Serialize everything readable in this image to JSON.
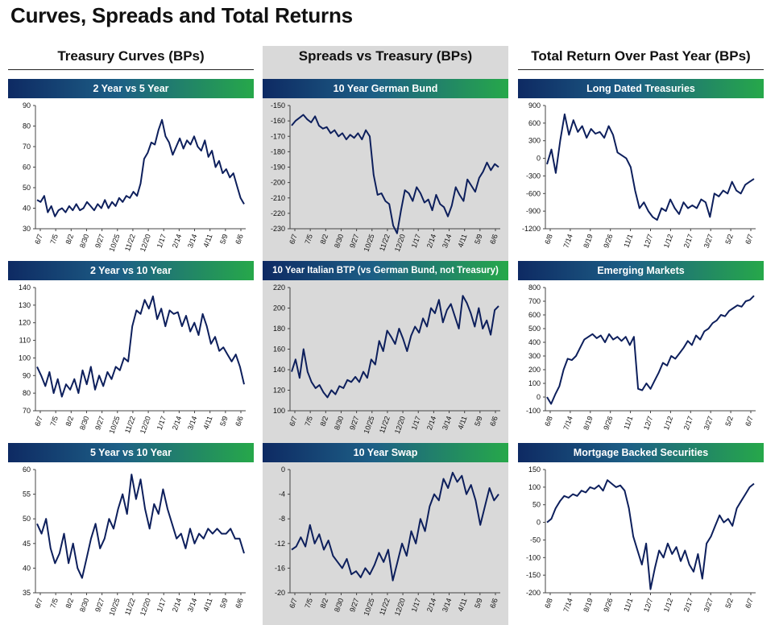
{
  "page_title": "Curves, Spreads and Total Returns",
  "columns": [
    {
      "heading": "Treasury Curves (BPs)"
    },
    {
      "heading": "Spreads vs Treasury (BPs)"
    },
    {
      "heading": "Total Return Over Past Year (BPs)"
    }
  ],
  "colors": {
    "line": "#0d1f5c",
    "bar_start": "#0e2a63",
    "bar_end": "#26a84a",
    "spreads_bg": "#d9d9d9"
  },
  "chart_data": [
    {
      "title": "2 Year vs 5 Year",
      "type": "line",
      "ylim": [
        30,
        90
      ],
      "yticks": [
        30,
        40,
        50,
        60,
        70,
        80,
        90
      ],
      "xticks": [
        "6/7",
        "7/5",
        "8/2",
        "8/30",
        "9/27",
        "10/25",
        "11/22",
        "12/20",
        "1/17",
        "2/14",
        "3/14",
        "4/11",
        "5/9",
        "6/6"
      ],
      "series": [
        {
          "values": [
            44,
            43,
            46,
            38,
            41,
            36,
            39,
            40,
            38,
            41,
            39,
            42,
            39,
            40,
            43,
            41,
            39,
            42,
            40,
            44,
            40,
            43,
            41,
            45,
            43,
            46,
            45,
            48,
            46,
            52,
            64,
            67,
            72,
            71,
            78,
            83,
            75,
            72,
            66,
            70,
            74,
            69,
            73,
            71,
            75,
            70,
            68,
            73,
            65,
            68,
            60,
            63,
            57,
            59,
            55,
            57,
            51,
            45,
            42
          ]
        }
      ]
    },
    {
      "title": "10 Year German Bund",
      "type": "line",
      "ylim": [
        -230,
        -150
      ],
      "yticks": [
        -150,
        -160,
        -170,
        -180,
        -190,
        -200,
        -210,
        -220,
        -230
      ],
      "xticks": [
        "6/7",
        "7/5",
        "8/2",
        "8/30",
        "9/27",
        "10/25",
        "11/22",
        "12/20",
        "1/17",
        "2/14",
        "3/14",
        "4/11",
        "5/9",
        "6/6"
      ],
      "series": [
        {
          "values": [
            -163,
            -160,
            -158,
            -156,
            -159,
            -161,
            -157,
            -163,
            -165,
            -164,
            -168,
            -166,
            -170,
            -168,
            -172,
            -169,
            -171,
            -168,
            -172,
            -166,
            -170,
            -195,
            -208,
            -207,
            -212,
            -214,
            -228,
            -233,
            -218,
            -205,
            -207,
            -212,
            -203,
            -207,
            -213,
            -211,
            -218,
            -208,
            -214,
            -216,
            -222,
            -215,
            -203,
            -208,
            -212,
            -198,
            -202,
            -206,
            -197,
            -193,
            -187,
            -192,
            -188,
            -190
          ]
        }
      ]
    },
    {
      "title": "Long Dated Treasuries",
      "type": "line",
      "ylim": [
        -1200,
        900
      ],
      "yticks": [
        900,
        600,
        300,
        0,
        -300,
        -600,
        -900,
        -1200
      ],
      "xticks": [
        "6/8",
        "7/14",
        "8/19",
        "9/26",
        "11/1",
        "12/7",
        "1/12",
        "2/17",
        "3/27",
        "5/2",
        "6/7"
      ],
      "series": [
        {
          "values": [
            -100,
            150,
            -250,
            300,
            750,
            400,
            650,
            450,
            550,
            350,
            500,
            420,
            450,
            350,
            550,
            400,
            100,
            50,
            0,
            -150,
            -550,
            -850,
            -750,
            -900,
            -1000,
            -1050,
            -850,
            -900,
            -700,
            -850,
            -950,
            -750,
            -850,
            -800,
            -850,
            -700,
            -750,
            -1000,
            -600,
            -650,
            -550,
            -600,
            -400,
            -550,
            -600,
            -450,
            -400,
            -350
          ]
        }
      ]
    },
    {
      "title": "2 Year vs 10 Year",
      "type": "line",
      "ylim": [
        70,
        140
      ],
      "yticks": [
        70,
        80,
        90,
        100,
        110,
        120,
        130,
        140
      ],
      "xticks": [
        "6/7",
        "7/5",
        "8/2",
        "8/30",
        "9/27",
        "10/25",
        "11/22",
        "12/20",
        "1/17",
        "2/14",
        "3/14",
        "4/11",
        "5/9",
        "6/6"
      ],
      "series": [
        {
          "values": [
            95,
            90,
            84,
            92,
            80,
            88,
            78,
            85,
            82,
            88,
            80,
            93,
            85,
            95,
            82,
            90,
            84,
            92,
            88,
            95,
            93,
            100,
            98,
            118,
            127,
            125,
            133,
            128,
            135,
            122,
            128,
            118,
            127,
            125,
            126,
            118,
            124,
            115,
            120,
            113,
            125,
            118,
            108,
            112,
            104,
            106,
            102,
            98,
            102,
            95,
            85
          ]
        }
      ]
    },
    {
      "title": "10 Year Italian BTP (vs German Bund, not Treasury)",
      "type": "line",
      "ylim": [
        100,
        220
      ],
      "yticks": [
        100,
        120,
        140,
        160,
        180,
        200,
        220
      ],
      "xticks": [
        "6/7",
        "7/5",
        "8/2",
        "8/30",
        "9/27",
        "10/25",
        "11/22",
        "12/20",
        "1/17",
        "2/14",
        "3/14",
        "4/11",
        "5/9",
        "6/6"
      ],
      "series": [
        {
          "values": [
            138,
            150,
            132,
            160,
            138,
            128,
            122,
            125,
            118,
            113,
            120,
            116,
            124,
            122,
            130,
            128,
            133,
            128,
            138,
            132,
            150,
            145,
            168,
            158,
            178,
            172,
            165,
            180,
            170,
            158,
            173,
            182,
            176,
            190,
            182,
            200,
            195,
            208,
            186,
            198,
            204,
            192,
            180,
            212,
            205,
            195,
            182,
            200,
            180,
            188,
            174,
            198,
            202
          ]
        }
      ]
    },
    {
      "title": "Emerging Markets",
      "type": "line",
      "ylim": [
        -100,
        800
      ],
      "yticks": [
        800,
        700,
        600,
        500,
        400,
        300,
        200,
        100,
        0,
        -100
      ],
      "xticks": [
        "6/8",
        "7/14",
        "8/19",
        "9/26",
        "11/1",
        "12/7",
        "1/12",
        "2/17",
        "3/27",
        "5/2",
        "6/7"
      ],
      "series": [
        {
          "values": [
            0,
            -50,
            20,
            80,
            200,
            280,
            270,
            300,
            360,
            420,
            440,
            460,
            430,
            450,
            400,
            460,
            420,
            440,
            410,
            440,
            380,
            440,
            60,
            50,
            100,
            60,
            120,
            180,
            250,
            230,
            300,
            280,
            320,
            360,
            410,
            380,
            450,
            420,
            480,
            500,
            540,
            560,
            600,
            590,
            630,
            650,
            670,
            660,
            700,
            710,
            740
          ]
        }
      ]
    },
    {
      "title": "5 Year vs 10 Year",
      "type": "line",
      "ylim": [
        35,
        60
      ],
      "yticks": [
        35,
        40,
        45,
        50,
        55,
        60
      ],
      "xticks": [
        "6/7",
        "7/5",
        "8/2",
        "8/30",
        "9/27",
        "10/25",
        "11/22",
        "12/20",
        "1/17",
        "2/14",
        "3/14",
        "4/11",
        "5/9",
        "6/6"
      ],
      "series": [
        {
          "values": [
            49,
            47,
            50,
            44,
            41,
            43,
            47,
            41,
            45,
            40,
            38,
            42,
            46,
            49,
            44,
            46,
            50,
            48,
            52,
            55,
            51,
            59,
            54,
            58,
            52,
            48,
            53,
            51,
            56,
            52,
            49,
            46,
            47,
            44,
            48,
            45,
            47,
            46,
            48,
            47,
            48,
            47,
            47,
            48,
            46,
            46,
            43
          ]
        }
      ]
    },
    {
      "title": "10 Year Swap",
      "type": "line",
      "ylim": [
        -20,
        0
      ],
      "yticks": [
        0,
        -4,
        -8,
        -12,
        -16,
        -20
      ],
      "xticks": [
        "6/7",
        "7/5",
        "8/2",
        "8/30",
        "9/27",
        "10/25",
        "11/22",
        "12/20",
        "1/17",
        "2/14",
        "3/14",
        "4/11",
        "5/9",
        "6/6"
      ],
      "series": [
        {
          "values": [
            -13,
            -12.5,
            -11,
            -12.5,
            -9,
            -12,
            -10.5,
            -13,
            -11.5,
            -14,
            -15,
            -16,
            -14.5,
            -17,
            -16.5,
            -17.5,
            -16,
            -17,
            -15.5,
            -13.5,
            -15,
            -13,
            -18,
            -15,
            -12,
            -14,
            -10,
            -12,
            -8,
            -10,
            -6,
            -4,
            -5,
            -1.5,
            -3,
            -0.5,
            -2,
            -1,
            -4,
            -2.5,
            -5,
            -9,
            -6,
            -3,
            -5,
            -4
          ]
        }
      ]
    },
    {
      "title": "Mortgage Backed Securities",
      "type": "line",
      "ylim": [
        -200,
        150
      ],
      "yticks": [
        150,
        100,
        50,
        0,
        -50,
        -100,
        -150,
        -200
      ],
      "xticks": [
        "6/8",
        "7/14",
        "8/19",
        "9/26",
        "11/1",
        "12/7",
        "1/12",
        "2/17",
        "3/27",
        "5/2",
        "6/7"
      ],
      "series": [
        {
          "values": [
            0,
            10,
            40,
            60,
            75,
            70,
            80,
            75,
            90,
            85,
            100,
            95,
            105,
            90,
            120,
            110,
            100,
            105,
            90,
            40,
            -40,
            -80,
            -120,
            -60,
            -190,
            -130,
            -80,
            -100,
            -60,
            -90,
            -70,
            -110,
            -80,
            -120,
            -140,
            -90,
            -160,
            -60,
            -40,
            -10,
            20,
            0,
            10,
            -10,
            40,
            60,
            80,
            100,
            110
          ]
        }
      ]
    }
  ]
}
